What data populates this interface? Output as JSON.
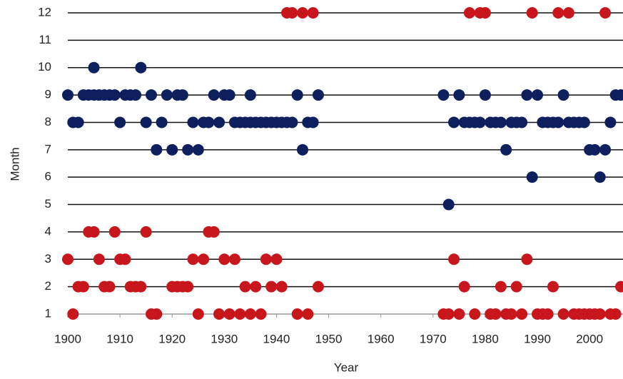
{
  "chart_data": {
    "type": "scatter",
    "xlabel": "Year",
    "ylabel": "Month",
    "xlim": [
      1900,
      2006
    ],
    "ylim": [
      1,
      12
    ],
    "xticks": [
      1900,
      1910,
      1920,
      1930,
      1940,
      1950,
      1960,
      1970,
      1980,
      1990,
      2000
    ],
    "yticks": [
      1,
      2,
      3,
      4,
      5,
      6,
      7,
      8,
      9,
      10,
      11,
      12
    ],
    "grid": true,
    "series": [
      {
        "color": "#c8161d",
        "x": [
          1942,
          1943,
          1945,
          1947,
          1977,
          1979,
          1980,
          1989,
          1994,
          1996,
          2003,
          1904,
          1905,
          1909,
          1915,
          1927,
          1928,
          1900,
          1906,
          1910,
          1911,
          1924,
          1926,
          1930,
          1932,
          1938,
          1940,
          1974,
          1988,
          1902,
          1903,
          1907,
          1908,
          1912,
          1913,
          1914,
          1920,
          1921,
          1922,
          1923,
          1934,
          1936,
          1939,
          1941,
          1948,
          1976,
          1983,
          1986,
          1993,
          2006,
          1901,
          1916,
          1917,
          1925,
          1929,
          1931,
          1933,
          1935,
          1937,
          1944,
          1946,
          1972,
          1973,
          1975,
          1978,
          1981,
          1982,
          1984,
          1985,
          1987,
          1990,
          1991,
          1992,
          1995,
          1997,
          1998,
          1999,
          2000,
          2001,
          2002,
          2004,
          2005
        ],
        "values": [
          12,
          12,
          12,
          12,
          12,
          12,
          12,
          12,
          12,
          12,
          12,
          4,
          4,
          4,
          4,
          4,
          4,
          3,
          3,
          3,
          3,
          3,
          3,
          3,
          3,
          3,
          3,
          3,
          3,
          2,
          2,
          2,
          2,
          2,
          2,
          2,
          2,
          2,
          2,
          2,
          2,
          2,
          2,
          2,
          2,
          2,
          2,
          2,
          2,
          2,
          1,
          1,
          1,
          1,
          1,
          1,
          1,
          1,
          1,
          1,
          1,
          1,
          1,
          1,
          1,
          1,
          1,
          1,
          1,
          1,
          1,
          1,
          1,
          1,
          1,
          1,
          1,
          1,
          1,
          1,
          1,
          1
        ]
      },
      {
        "color": "#0d1f5c",
        "x": [
          1905,
          1914,
          1900,
          1903,
          1904,
          1905,
          1906,
          1907,
          1908,
          1909,
          1911,
          1912,
          1913,
          1916,
          1919,
          1921,
          1922,
          1928,
          1930,
          1931,
          1935,
          1944,
          1948,
          1972,
          1975,
          1980,
          1988,
          1990,
          1995,
          2005,
          2006,
          1901,
          1902,
          1910,
          1915,
          1918,
          1924,
          1926,
          1927,
          1929,
          1932,
          1933,
          1934,
          1935,
          1936,
          1937,
          1938,
          1939,
          1940,
          1941,
          1942,
          1943,
          1946,
          1947,
          1974,
          1976,
          1977,
          1978,
          1979,
          1981,
          1982,
          1983,
          1985,
          1986,
          1987,
          1991,
          1992,
          1993,
          1994,
          1996,
          1997,
          1998,
          1999,
          2004,
          1917,
          1920,
          1923,
          1925,
          1945,
          1984,
          2000,
          2001,
          2003,
          1989,
          2002,
          1973
        ],
        "values": [
          10,
          10,
          9,
          9,
          9,
          9,
          9,
          9,
          9,
          9,
          9,
          9,
          9,
          9,
          9,
          9,
          9,
          9,
          9,
          9,
          9,
          9,
          9,
          9,
          9,
          9,
          9,
          9,
          9,
          9,
          9,
          8,
          8,
          8,
          8,
          8,
          8,
          8,
          8,
          8,
          8,
          8,
          8,
          8,
          8,
          8,
          8,
          8,
          8,
          8,
          8,
          8,
          8,
          8,
          8,
          8,
          8,
          8,
          8,
          8,
          8,
          8,
          8,
          8,
          8,
          8,
          8,
          8,
          8,
          8,
          8,
          8,
          8,
          8,
          7,
          7,
          7,
          7,
          7,
          7,
          7,
          7,
          7,
          6,
          6,
          5
        ]
      }
    ]
  }
}
